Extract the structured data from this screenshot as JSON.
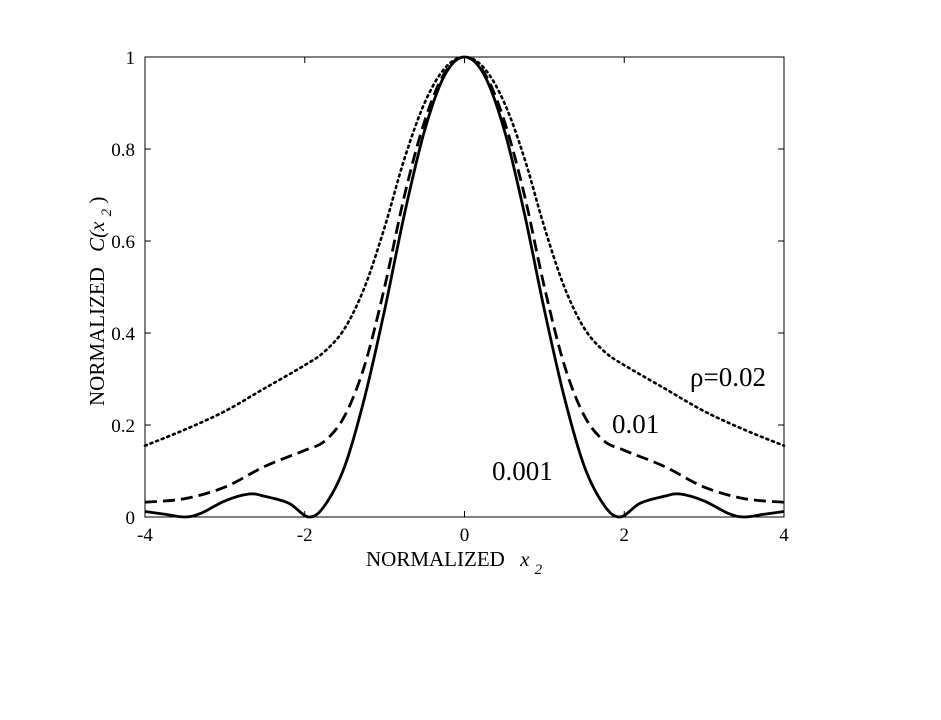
{
  "chart_data": {
    "type": "line",
    "xlabel": "NORMALIZED",
    "xlabel_var": "x",
    "xlabel_sub": "2",
    "ylabel": "NORMALIZED",
    "ylabel_var": "C(x",
    "ylabel_sub": "2",
    "ylabel_close": ")",
    "xlim": [
      -4,
      4
    ],
    "ylim": [
      0,
      1
    ],
    "xticks": [
      "-4",
      "-2",
      "0",
      "2",
      "4"
    ],
    "yticks": [
      "0",
      "0.2",
      "0.4",
      "0.6",
      "0.8",
      "1"
    ],
    "grid": false,
    "series": [
      {
        "name": "0.001",
        "style": "solid",
        "color": "#000000",
        "x": [
          0,
          0.25,
          0.5,
          0.75,
          1.0,
          1.25,
          1.5,
          1.75,
          1.95,
          2.2,
          2.5,
          2.7,
          3.0,
          3.3,
          3.5,
          3.75,
          4.0
        ],
        "y": [
          1.0,
          0.96,
          0.84,
          0.66,
          0.45,
          0.26,
          0.11,
          0.025,
          0.0,
          0.03,
          0.045,
          0.05,
          0.035,
          0.008,
          0.0,
          0.006,
          0.012
        ]
      },
      {
        "name": "0.01",
        "style": "dashed",
        "color": "#000000",
        "x": [
          0,
          0.25,
          0.5,
          0.75,
          1.0,
          1.25,
          1.5,
          1.75,
          2.0,
          2.5,
          3.0,
          3.5,
          4.0
        ],
        "y": [
          1.0,
          0.965,
          0.86,
          0.7,
          0.5,
          0.33,
          0.22,
          0.165,
          0.145,
          0.11,
          0.065,
          0.04,
          0.032
        ]
      },
      {
        "name": "ρ=0.02",
        "style": "dotted",
        "color": "#000000",
        "x": [
          0,
          0.25,
          0.5,
          0.75,
          1.0,
          1.25,
          1.5,
          1.75,
          2.0,
          2.5,
          3.0,
          3.5,
          4.0
        ],
        "y": [
          1.0,
          0.975,
          0.9,
          0.78,
          0.63,
          0.5,
          0.41,
          0.36,
          0.33,
          0.28,
          0.23,
          0.19,
          0.155
        ]
      }
    ],
    "annotations": [
      "ρ=0.02",
      "0.01",
      "0.001"
    ]
  }
}
